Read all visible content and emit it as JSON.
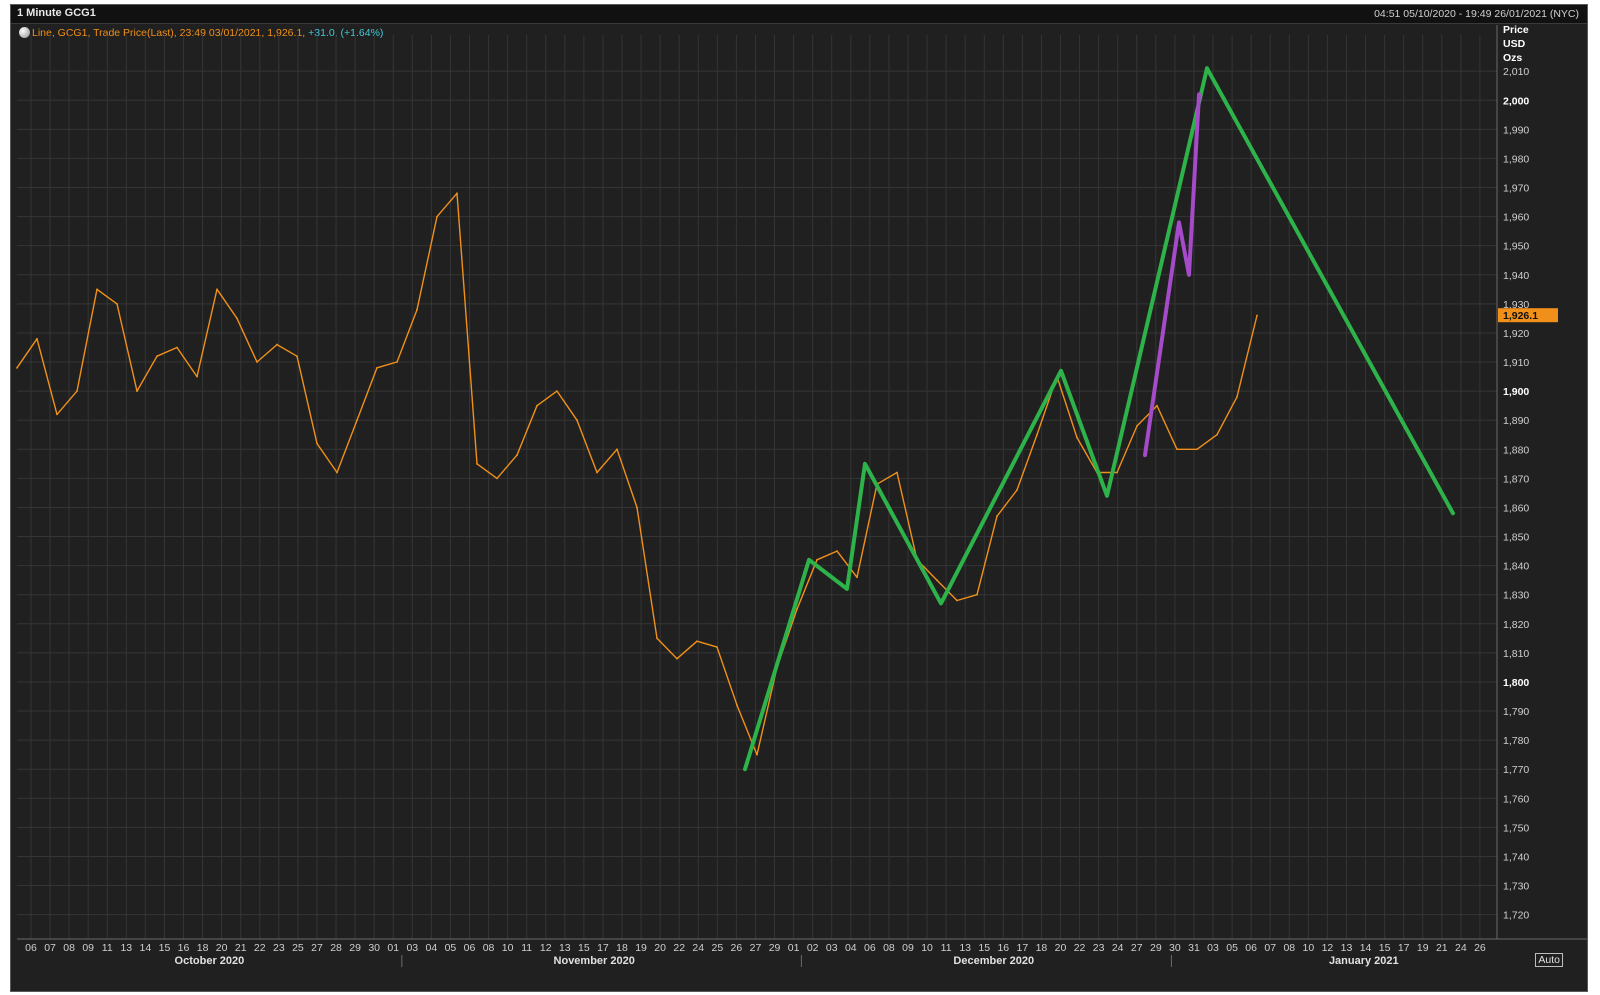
{
  "window": {
    "title": "1 Minute GCG1",
    "range": "04:51 05/10/2020 - 19:49 26/01/2021 (NYC)"
  },
  "legend": {
    "series_prefix": "Line, GCG1, Trade Price(Last),",
    "timestamp": "23:49 03/01/2021,",
    "last": "1,926.1,",
    "change": "+31.0, (+1.64%)"
  },
  "axis": {
    "y_title": [
      "Price",
      "USD",
      "Ozs"
    ],
    "last_price_badge": "1,926.1",
    "auto_label": "Auto"
  },
  "colors": {
    "price_line": "#f0901a",
    "green_projection": "#2eb34a",
    "purple_projection": "#a54bc9",
    "badge": "#f0901a",
    "grid": "#353535"
  },
  "chart_data": {
    "type": "line",
    "title": "1 Minute GCG1",
    "ylabel": "Price USD Ozs",
    "ylim": [
      1713,
      2019
    ],
    "y_ticks": [
      1720,
      1730,
      1740,
      1750,
      1760,
      1770,
      1780,
      1790,
      1800,
      1810,
      1820,
      1830,
      1840,
      1850,
      1860,
      1870,
      1880,
      1890,
      1900,
      1910,
      1920,
      1930,
      1940,
      1950,
      1960,
      1970,
      1980,
      1990,
      2000,
      2010
    ],
    "y_ticks_bold": [
      1800,
      1900,
      2000
    ],
    "x_ticks": [
      "06",
      "07",
      "08",
      "09",
      "11",
      "13",
      "14",
      "15",
      "16",
      "18",
      "20",
      "21",
      "22",
      "23",
      "25",
      "27",
      "28",
      "29",
      "30",
      "01",
      "03",
      "04",
      "05",
      "06",
      "08",
      "10",
      "11",
      "12",
      "13",
      "15",
      "17",
      "18",
      "19",
      "20",
      "22",
      "24",
      "25",
      "26",
      "27",
      "29",
      "01",
      "02",
      "03",
      "04",
      "06",
      "08",
      "09",
      "10",
      "11",
      "13",
      "15",
      "16",
      "17",
      "18",
      "20",
      "22",
      "23",
      "24",
      "27",
      "29",
      "30",
      "31",
      "03",
      "05",
      "06",
      "07",
      "08",
      "10",
      "12",
      "13",
      "14",
      "15",
      "17",
      "19",
      "21",
      "24",
      "26"
    ],
    "months": [
      "October 2020",
      "November 2020",
      "December 2020",
      "January 2021"
    ],
    "series": [
      {
        "name": "GCG1 Trade Price(Last)",
        "style": "orange",
        "x": [
          0,
          1,
          2,
          3,
          4,
          5,
          6,
          7,
          8,
          9,
          10,
          11,
          12,
          13,
          14,
          15,
          16,
          17,
          18,
          19,
          20,
          21,
          22,
          23,
          24,
          25,
          26,
          27,
          28,
          29,
          30,
          31,
          32,
          33,
          34,
          35,
          36,
          37,
          38,
          39,
          40,
          41,
          42,
          43,
          44,
          45,
          46,
          47,
          48,
          49,
          50,
          51,
          52,
          53,
          54,
          55,
          56,
          57,
          58,
          59,
          60,
          61,
          62
        ],
        "values": [
          1908,
          1918,
          1892,
          1900,
          1935,
          1930,
          1900,
          1912,
          1915,
          1905,
          1935,
          1925,
          1910,
          1916,
          1912,
          1882,
          1872,
          1890,
          1908,
          1910,
          1928,
          1960,
          1968,
          1875,
          1870,
          1878,
          1895,
          1900,
          1890,
          1872,
          1880,
          1860,
          1815,
          1808,
          1814,
          1812,
          1792,
          1775,
          1805,
          1825,
          1842,
          1845,
          1836,
          1868,
          1872,
          1842,
          1835,
          1828,
          1830,
          1857,
          1866,
          1885,
          1905,
          1884,
          1872,
          1872,
          1888,
          1895,
          1880,
          1880,
          1885,
          1898,
          1926
        ]
      },
      {
        "name": "",
        "style": "green",
        "x": [
          36.4,
          39.6,
          41.5,
          42.4,
          46.2,
          52.2,
          54.5,
          59.5
        ],
        "values": [
          1770,
          1842,
          1832,
          1875,
          1827,
          1907,
          1864,
          2011
        ]
      },
      {
        "name": "",
        "style": "purple",
        "x": [
          56.4,
          58.1,
          58.6,
          59.1
        ],
        "values": [
          1878,
          1958,
          1940,
          2002
        ]
      },
      {
        "name": "",
        "style": "green",
        "x": [
          59.5,
          71.8
        ],
        "values": [
          2011,
          1858
        ]
      }
    ]
  }
}
